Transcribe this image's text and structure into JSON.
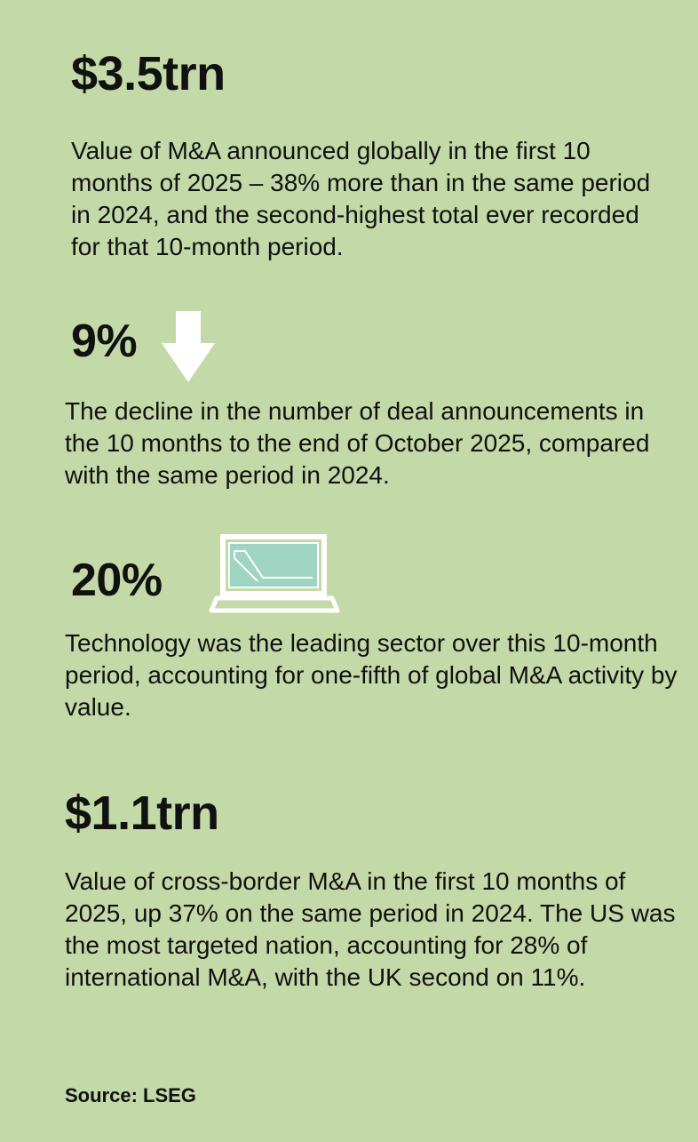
{
  "colors": {
    "background": "#c3d9a8",
    "text": "#111111",
    "icon_outline": "#ffffff",
    "screen_fill": "#9fd4c2"
  },
  "items": [
    {
      "figure": "$3.5trn",
      "description": "Value of M&A announced globally in the first 10 months of 2025 – 38% more than in the same period in 2024, and the second-highest total ever recorded for that 10-month period.",
      "icon": ""
    },
    {
      "figure": "9%",
      "description": "The decline in the number of deal announcements in the 10 months to the end of October 2025, compared with the same period in 2024.",
      "icon": "down-arrow-icon"
    },
    {
      "figure": "20%",
      "description": "Technology was the leading sector over this 10-month period, accounting for one-fifth of global M&A activity by value.",
      "icon": "laptop-icon"
    },
    {
      "figure": "$1.1trn",
      "description": "Value of cross-border M&A in the first 10 months of 2025, up 37% on the same period in 2024. The US was the most targeted nation, accounting for 28% of international M&A, with the UK second on 11%.",
      "icon": ""
    }
  ],
  "source": "Source: LSEG"
}
